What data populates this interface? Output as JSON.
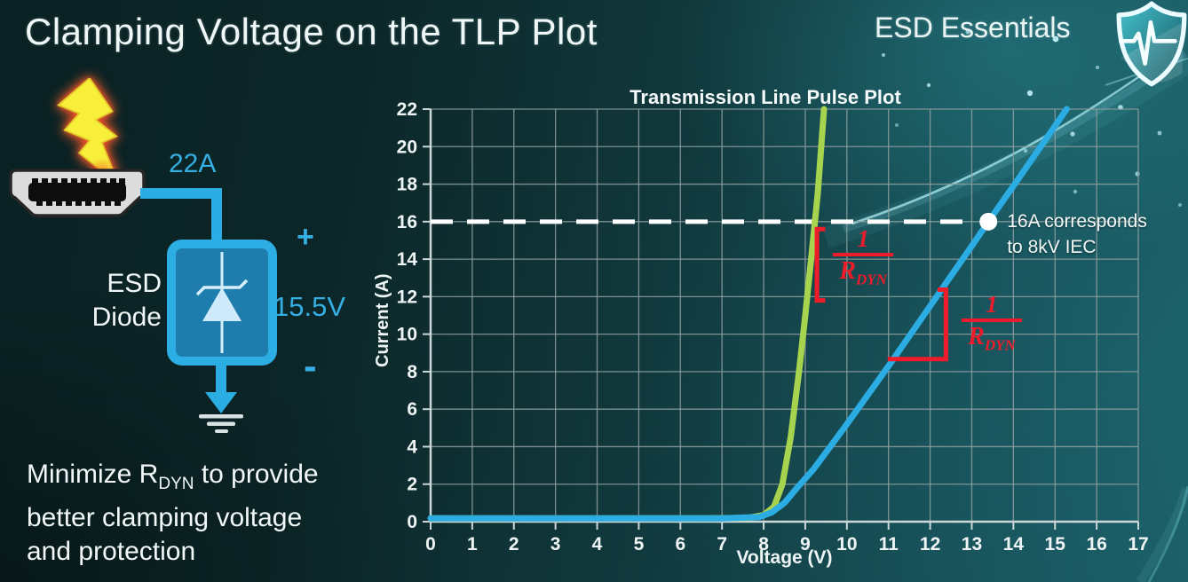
{
  "slide": {
    "title": "Clamping Voltage on the TLP Plot",
    "brand": "ESD Essentials",
    "logo_icon": "shield-pulse-icon",
    "note": {
      "line1_prefix": "Minimize R",
      "line1_sub": "DYN",
      "line1_suffix": " to provide",
      "line2": "better clamping voltage",
      "line3": "and protection"
    }
  },
  "diagram": {
    "surge_label": "22A",
    "device_label_line1": "ESD",
    "device_label_line2": "Diode",
    "plus_label": "+",
    "clamp_voltage_label": "15.5V",
    "minus_label": "-",
    "icons": [
      "lightning-icon",
      "hdmi-connector-icon",
      "zener-diode-icon",
      "ground-icon"
    ],
    "colors": {
      "wire": "#2bace2",
      "label": "#35aee3",
      "diode_fill": "#1f7dad",
      "diode_symbol": "#d6eef9"
    }
  },
  "chart_data": {
    "type": "line",
    "title": "Transmission Line Pulse Plot",
    "xlabel": "Voltage (V)",
    "ylabel": "Current (A)",
    "xlim": [
      0,
      17
    ],
    "ylim": [
      0,
      22
    ],
    "x_ticks": [
      0,
      1,
      2,
      3,
      4,
      5,
      6,
      7,
      8,
      9,
      10,
      11,
      12,
      13,
      14,
      15,
      16,
      17
    ],
    "y_ticks": [
      0,
      2,
      4,
      6,
      8,
      10,
      12,
      14,
      16,
      18,
      20,
      22
    ],
    "grid": {
      "on": true,
      "x_step": 1,
      "y_step": 2,
      "color": "#8fa0a0",
      "axis_color": "#ccd7d7"
    },
    "legend": "none",
    "series": [
      {
        "name": "low-rdyn-diode-steep",
        "color": "#a7d44e",
        "points": [
          [
            0,
            0.18
          ],
          [
            6.5,
            0.18
          ],
          [
            7.6,
            0.2
          ],
          [
            8.0,
            0.35
          ],
          [
            8.25,
            0.8
          ],
          [
            8.45,
            2
          ],
          [
            8.65,
            4.5
          ],
          [
            8.85,
            8
          ],
          [
            9.0,
            11
          ],
          [
            9.15,
            14.2
          ],
          [
            9.3,
            17.5
          ],
          [
            9.45,
            22
          ]
        ]
      },
      {
        "name": "high-rdyn-diode",
        "color": "#2bace2",
        "points": [
          [
            0,
            0.18
          ],
          [
            7.0,
            0.18
          ],
          [
            7.9,
            0.25
          ],
          [
            8.2,
            0.5
          ],
          [
            8.5,
            1.0
          ],
          [
            8.8,
            1.8
          ],
          [
            9.2,
            2.8
          ],
          [
            10,
            5.2
          ],
          [
            11,
            8.3
          ],
          [
            12,
            11.5
          ],
          [
            13,
            14.7
          ],
          [
            13.4,
            16
          ],
          [
            14,
            17.9
          ],
          [
            15,
            21.1
          ],
          [
            15.28,
            22
          ]
        ]
      }
    ],
    "threshold": {
      "y": 16,
      "x_start": 0,
      "x_end": 13.08,
      "color": "#ffffff",
      "dash": "25 16",
      "width": 5
    },
    "marker": {
      "x": 13.4,
      "y": 16,
      "radius": 10,
      "color": "#ffffff",
      "label_line1": "16A corresponds",
      "label_line2": "to 8kV IEC"
    },
    "annotations": [
      {
        "name": "slope-marker-green",
        "color": "#ee1b2b",
        "numerator": "1",
        "denominator": "R",
        "denominator_sub": "DYN",
        "bracket": [
          [
            9.48,
            15.6
          ],
          [
            9.28,
            15.6
          ],
          [
            9.28,
            11.8
          ],
          [
            9.48,
            11.8
          ]
        ],
        "label_pos": [
          10.39,
          15.7
        ]
      },
      {
        "name": "slope-marker-blue",
        "color": "#ee1b2b",
        "numerator": "1",
        "denominator": "R",
        "denominator_sub": "DYN",
        "bracket": [
          [
            10.98,
            8.67
          ],
          [
            12.38,
            8.67
          ],
          [
            12.38,
            12.37
          ],
          [
            12.18,
            12.37
          ]
        ],
        "label_pos": [
          13.48,
          12.2
        ]
      }
    ]
  }
}
